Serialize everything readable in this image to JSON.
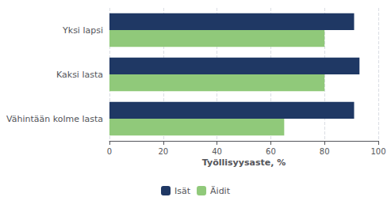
{
  "chart_data": {
    "type": "bar",
    "orientation": "horizontal",
    "categories": [
      "Vähintään kolme lasta",
      "Kaksi lasta",
      "Yksi lapsi"
    ],
    "series": [
      {
        "name": "Isät",
        "color": "#1F3864",
        "values": [
          91,
          93,
          91
        ]
      },
      {
        "name": "Äidit",
        "color": "#90C97A",
        "values": [
          65,
          80,
          80
        ]
      }
    ],
    "xlabel": "Työllisyysaste, %",
    "xlim": [
      0,
      100
    ],
    "xticks": [
      0,
      20,
      40,
      60,
      80,
      100
    ],
    "grid": true,
    "legend": "bottom"
  }
}
